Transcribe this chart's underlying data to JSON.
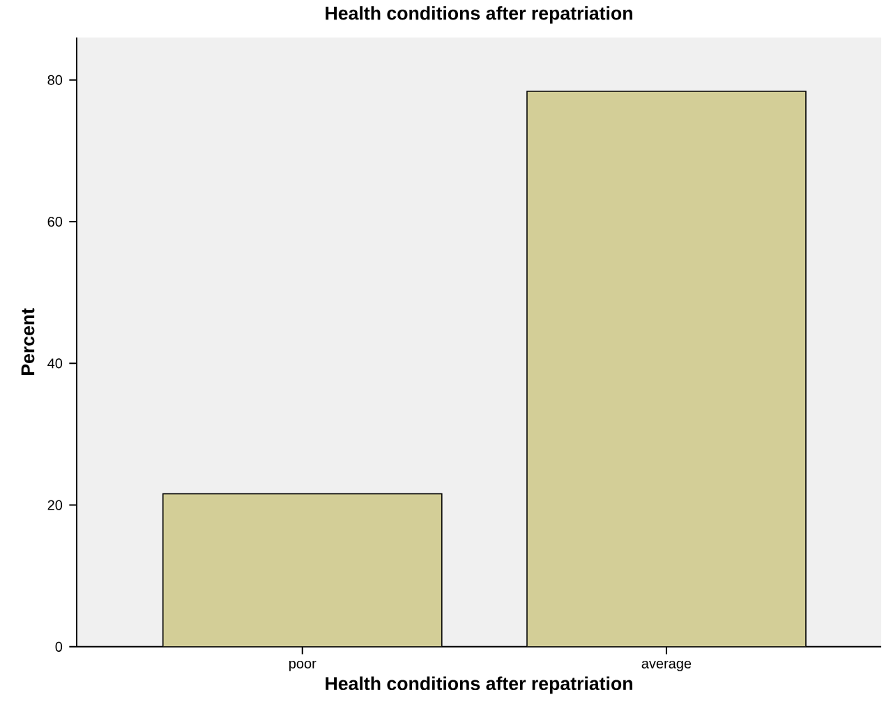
{
  "chart_data": {
    "type": "bar",
    "title": "Health conditions after repatriation",
    "xlabel": "Health conditions after repatriation",
    "ylabel": "Percent",
    "categories": [
      "poor",
      "average"
    ],
    "values": [
      21.6,
      78.4
    ],
    "color": "#d3ce97",
    "ylim": [
      0,
      86
    ],
    "yticks": [
      0,
      20,
      40,
      60,
      80
    ],
    "grid": false
  }
}
